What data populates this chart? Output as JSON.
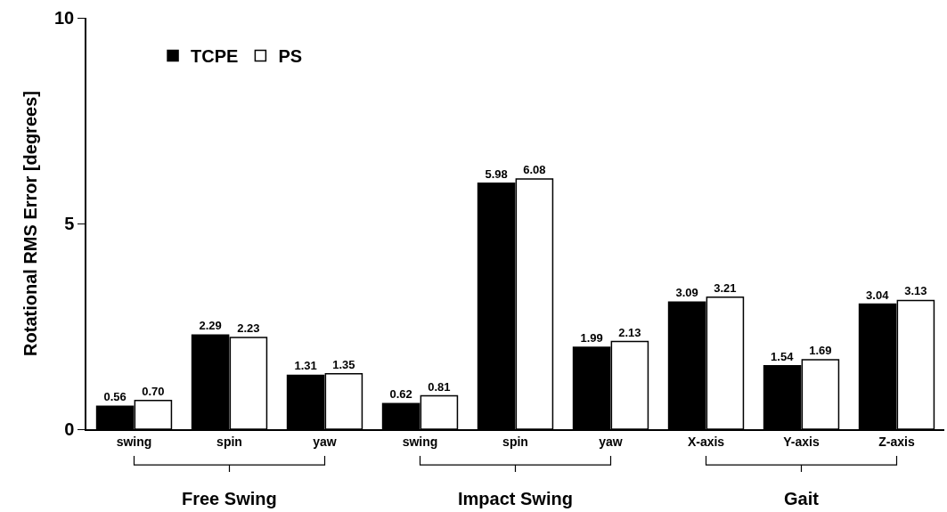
{
  "chart_data": {
    "type": "bar",
    "ylabel": "Rotational RMS Error [degrees]",
    "categories": [
      "swing",
      "spin",
      "yaw",
      "swing",
      "spin",
      "yaw",
      "X-axis",
      "Y-axis",
      "Z-axis"
    ],
    "series": [
      {
        "name": "TCPE",
        "color": "#000000",
        "values": [
          0.56,
          2.29,
          1.31,
          0.62,
          5.98,
          1.99,
          3.09,
          1.54,
          3.04
        ],
        "value_labels": [
          "0.56",
          "2.29",
          "1.31",
          "0.62",
          "5.98",
          "1.99",
          "3.09",
          "1.54",
          "3.04"
        ]
      },
      {
        "name": "PS",
        "color": "#ffffff",
        "values": [
          0.7,
          2.23,
          1.35,
          0.81,
          6.08,
          2.13,
          3.21,
          1.69,
          3.13
        ],
        "value_labels": [
          "0.70",
          "2.23",
          "1.35",
          "0.81",
          "6.08",
          "2.13",
          "3.21",
          "1.69",
          "3.13"
        ]
      }
    ],
    "annotations": [
      "Free Swing",
      "Impact Swing",
      "Gait"
    ],
    "ylim": [
      0,
      10
    ],
    "yticks": [
      0,
      5,
      10
    ],
    "grid": false,
    "legend": "top left"
  }
}
